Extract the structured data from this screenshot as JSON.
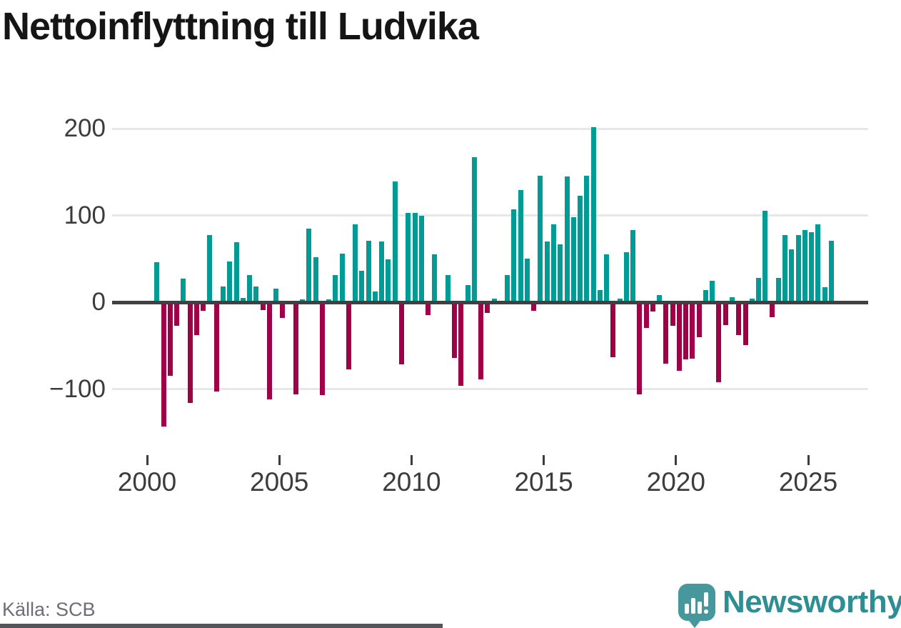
{
  "header": {
    "title": "Nettoinflyttning till Ludvika"
  },
  "footer": {
    "source_label": "Källa: SCB",
    "brand_name": "Newsworthy",
    "brand_color": "#2d8e94",
    "brand_icon": "speech-bubble-barchart-icon"
  },
  "chart_data": {
    "type": "bar",
    "title": "Nettoinflyttning till Ludvika",
    "xlabel": "",
    "ylabel": "",
    "grid": "horizontal",
    "legend": "none",
    "ylim": [
      -160,
      215
    ],
    "y_ticks": [
      200,
      100,
      0,
      -100
    ],
    "y_tick_labels": [
      "200",
      "100",
      "0",
      "−100"
    ],
    "x_tick_years": [
      2000,
      2005,
      2010,
      2015,
      2020,
      2025
    ],
    "x_tick_labels": [
      "2000",
      "2005",
      "2010",
      "2015",
      "2020",
      "2025"
    ],
    "positive_color": "#009b94",
    "negative_color": "#a00048",
    "series_name": "Nettoinflyttning per kvartal",
    "points": [
      {
        "p": "2000Q2",
        "v": 46
      },
      {
        "p": "2000Q3",
        "v": -143
      },
      {
        "p": "2000Q4",
        "v": -85
      },
      {
        "p": "2001Q1",
        "v": -27
      },
      {
        "p": "2001Q2",
        "v": 27
      },
      {
        "p": "2001Q3",
        "v": -116
      },
      {
        "p": "2001Q4",
        "v": -38
      },
      {
        "p": "2002Q1",
        "v": -10
      },
      {
        "p": "2002Q2",
        "v": 77
      },
      {
        "p": "2002Q3",
        "v": -103
      },
      {
        "p": "2002Q4",
        "v": 18
      },
      {
        "p": "2003Q1",
        "v": 47
      },
      {
        "p": "2003Q2",
        "v": 69
      },
      {
        "p": "2003Q3",
        "v": 5
      },
      {
        "p": "2003Q4",
        "v": 31
      },
      {
        "p": "2004Q1",
        "v": 18
      },
      {
        "p": "2004Q2",
        "v": -9
      },
      {
        "p": "2004Q3",
        "v": -112
      },
      {
        "p": "2004Q4",
        "v": 16
      },
      {
        "p": "2005Q1",
        "v": -18
      },
      {
        "p": "2005Q2",
        "v": 0
      },
      {
        "p": "2005Q3",
        "v": -106
      },
      {
        "p": "2005Q4",
        "v": 3
      },
      {
        "p": "2006Q1",
        "v": 85
      },
      {
        "p": "2006Q2",
        "v": 52
      },
      {
        "p": "2006Q3",
        "v": -107
      },
      {
        "p": "2006Q4",
        "v": 3
      },
      {
        "p": "2007Q1",
        "v": 31
      },
      {
        "p": "2007Q2",
        "v": 56
      },
      {
        "p": "2007Q3",
        "v": -77
      },
      {
        "p": "2007Q4",
        "v": 90
      },
      {
        "p": "2008Q1",
        "v": 36
      },
      {
        "p": "2008Q2",
        "v": 71
      },
      {
        "p": "2008Q3",
        "v": 12
      },
      {
        "p": "2008Q4",
        "v": 70
      },
      {
        "p": "2009Q1",
        "v": 49
      },
      {
        "p": "2009Q2",
        "v": 139
      },
      {
        "p": "2009Q3",
        "v": -72
      },
      {
        "p": "2009Q4",
        "v": 103
      },
      {
        "p": "2010Q1",
        "v": 103
      },
      {
        "p": "2010Q2",
        "v": 100
      },
      {
        "p": "2010Q3",
        "v": -15
      },
      {
        "p": "2010Q4",
        "v": 55
      },
      {
        "p": "2011Q1",
        "v": 0
      },
      {
        "p": "2011Q2",
        "v": 31
      },
      {
        "p": "2011Q3",
        "v": -64
      },
      {
        "p": "2011Q4",
        "v": -96
      },
      {
        "p": "2012Q1",
        "v": 20
      },
      {
        "p": "2012Q2",
        "v": 167
      },
      {
        "p": "2012Q3",
        "v": -89
      },
      {
        "p": "2012Q4",
        "v": -12
      },
      {
        "p": "2013Q1",
        "v": 4
      },
      {
        "p": "2013Q2",
        "v": 0
      },
      {
        "p": "2013Q3",
        "v": 31
      },
      {
        "p": "2013Q4",
        "v": 107
      },
      {
        "p": "2014Q1",
        "v": 129
      },
      {
        "p": "2014Q2",
        "v": 50
      },
      {
        "p": "2014Q3",
        "v": -10
      },
      {
        "p": "2014Q4",
        "v": 146
      },
      {
        "p": "2015Q1",
        "v": 70
      },
      {
        "p": "2015Q2",
        "v": 90
      },
      {
        "p": "2015Q3",
        "v": 67
      },
      {
        "p": "2015Q4",
        "v": 145
      },
      {
        "p": "2016Q1",
        "v": 98
      },
      {
        "p": "2016Q2",
        "v": 123
      },
      {
        "p": "2016Q3",
        "v": 146
      },
      {
        "p": "2016Q4",
        "v": 202
      },
      {
        "p": "2017Q1",
        "v": 14
      },
      {
        "p": "2017Q2",
        "v": 55
      },
      {
        "p": "2017Q3",
        "v": -63
      },
      {
        "p": "2017Q4",
        "v": 4
      },
      {
        "p": "2018Q1",
        "v": 58
      },
      {
        "p": "2018Q2",
        "v": 83
      },
      {
        "p": "2018Q3",
        "v": -106
      },
      {
        "p": "2018Q4",
        "v": -30
      },
      {
        "p": "2019Q1",
        "v": -11
      },
      {
        "p": "2019Q2",
        "v": 8
      },
      {
        "p": "2019Q3",
        "v": -71
      },
      {
        "p": "2019Q4",
        "v": -27
      },
      {
        "p": "2020Q1",
        "v": -79
      },
      {
        "p": "2020Q2",
        "v": -66
      },
      {
        "p": "2020Q3",
        "v": -65
      },
      {
        "p": "2020Q4",
        "v": -40
      },
      {
        "p": "2021Q1",
        "v": 14
      },
      {
        "p": "2021Q2",
        "v": 25
      },
      {
        "p": "2021Q3",
        "v": -92
      },
      {
        "p": "2021Q4",
        "v": -26
      },
      {
        "p": "2022Q1",
        "v": 6
      },
      {
        "p": "2022Q2",
        "v": -38
      },
      {
        "p": "2022Q3",
        "v": -49
      },
      {
        "p": "2022Q4",
        "v": 4
      },
      {
        "p": "2023Q1",
        "v": 28
      },
      {
        "p": "2023Q2",
        "v": 105
      },
      {
        "p": "2023Q3",
        "v": -17
      },
      {
        "p": "2023Q4",
        "v": 28
      },
      {
        "p": "2024Q1",
        "v": 77
      },
      {
        "p": "2024Q2",
        "v": 61
      },
      {
        "p": "2024Q3",
        "v": 77
      },
      {
        "p": "2024Q4",
        "v": 83
      },
      {
        "p": "2025Q1",
        "v": 81
      },
      {
        "p": "2025Q2",
        "v": 90
      },
      {
        "p": "2025Q3",
        "v": 17
      },
      {
        "p": "2025Q4",
        "v": 71
      }
    ]
  }
}
